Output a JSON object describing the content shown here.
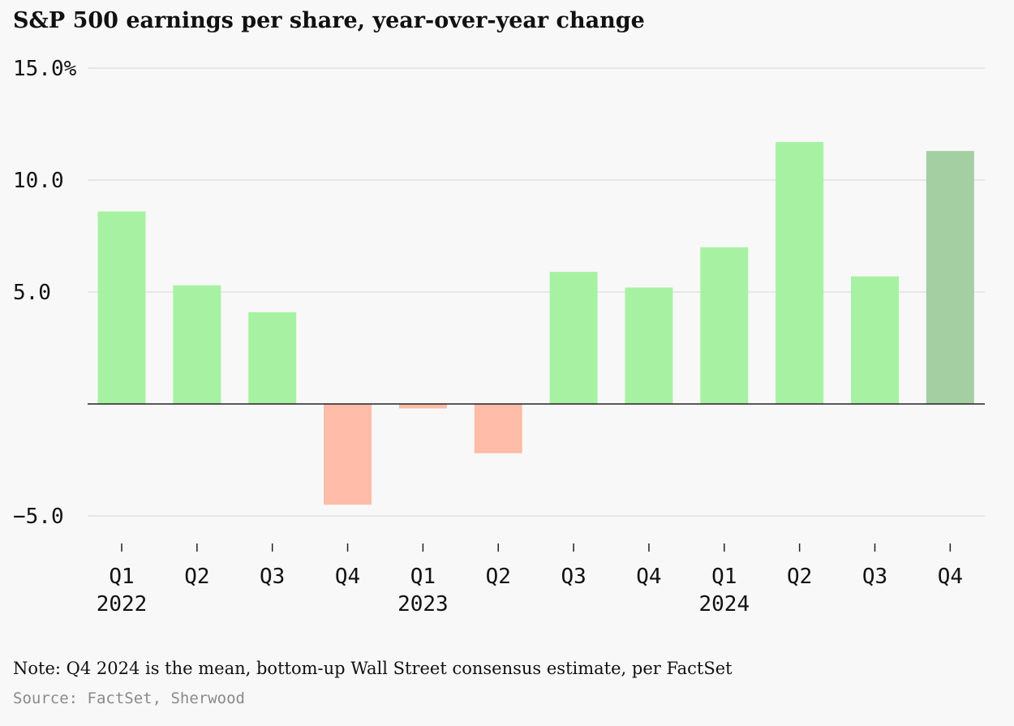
{
  "chart_data": {
    "type": "bar",
    "title": "S&P 500 earnings per share, year-over-year change",
    "xlabel": "",
    "ylabel": "",
    "ylim": [
      -5,
      15
    ],
    "yticks": [
      {
        "value": 15,
        "label": "15.0%"
      },
      {
        "value": 10,
        "label": "10.0"
      },
      {
        "value": 5,
        "label": "5.0"
      },
      {
        "value": -5,
        "label": "−5.0"
      }
    ],
    "grid": true,
    "categories": [
      {
        "quarter": "Q1",
        "year": "2022"
      },
      {
        "quarter": "Q2",
        "year": ""
      },
      {
        "quarter": "Q3",
        "year": ""
      },
      {
        "quarter": "Q4",
        "year": ""
      },
      {
        "quarter": "Q1",
        "year": "2023"
      },
      {
        "quarter": "Q2",
        "year": ""
      },
      {
        "quarter": "Q3",
        "year": ""
      },
      {
        "quarter": "Q4",
        "year": ""
      },
      {
        "quarter": "Q1",
        "year": "2024"
      },
      {
        "quarter": "Q2",
        "year": ""
      },
      {
        "quarter": "Q3",
        "year": ""
      },
      {
        "quarter": "Q4",
        "year": ""
      }
    ],
    "values": [
      8.6,
      5.3,
      4.1,
      -4.5,
      -0.2,
      -2.2,
      5.9,
      5.2,
      7.0,
      11.7,
      5.7,
      11.3
    ],
    "estimate": [
      false,
      false,
      false,
      false,
      false,
      false,
      false,
      false,
      false,
      false,
      false,
      true
    ],
    "colors": {
      "positive": "#a7f2a2",
      "negative": "#ffbca8",
      "estimate": "#a3cfa3",
      "grid": "#e1e1e1",
      "zero_line": "#222222"
    }
  },
  "note": "Note: Q4 2024 is the mean, bottom-up Wall Street consensus estimate, per FactSet",
  "source": "Source: FactSet, Sherwood"
}
